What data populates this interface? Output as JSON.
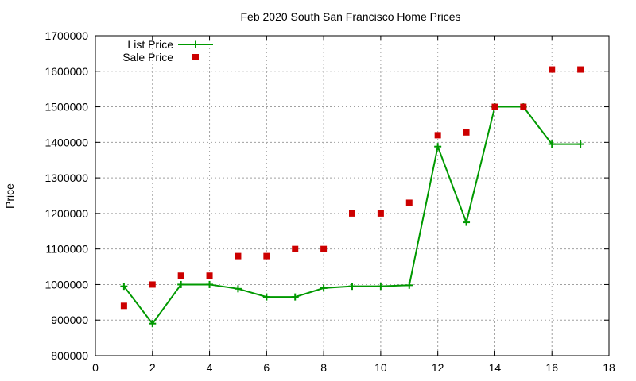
{
  "chart_data": {
    "type": "line",
    "title": "Feb 2020 South San Francisco Home Prices",
    "xlabel": "",
    "ylabel": "Price",
    "xlim": [
      0,
      18
    ],
    "ylim": [
      800000,
      1700000
    ],
    "x_ticks": [
      0,
      2,
      4,
      6,
      8,
      10,
      12,
      14,
      16,
      18
    ],
    "y_ticks": [
      800000,
      900000,
      1000000,
      1100000,
      1200000,
      1300000,
      1400000,
      1500000,
      1600000,
      1700000
    ],
    "grid": true,
    "legend_position": "top-left",
    "x": [
      1,
      2,
      3,
      4,
      5,
      6,
      7,
      8,
      9,
      10,
      11,
      12,
      13,
      14,
      15,
      16,
      17
    ],
    "series": [
      {
        "name": "List Price",
        "style": "line-with-plus-markers",
        "color": "#009900",
        "values": [
          995000,
          890000,
          1000000,
          1000000,
          988000,
          965000,
          965000,
          990000,
          995000,
          995000,
          998000,
          1388000,
          1175000,
          1500000,
          1500000,
          1395000,
          1395000
        ]
      },
      {
        "name": "Sale Price",
        "style": "square-markers",
        "color": "#cc0000",
        "values": [
          940000,
          1000000,
          1025000,
          1025000,
          1080000,
          1080000,
          1100000,
          1100000,
          1200000,
          1200000,
          1230000,
          1420000,
          1428000,
          1500000,
          1500000,
          1605000,
          1605000
        ]
      }
    ]
  }
}
